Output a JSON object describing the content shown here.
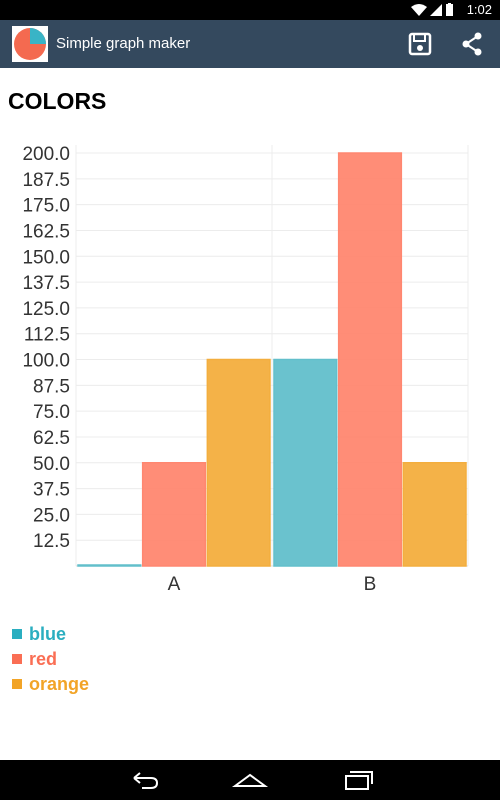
{
  "status_bar": {
    "time": "1:02",
    "icons": [
      "wifi-icon",
      "cell-signal-icon",
      "battery-icon"
    ]
  },
  "action_bar": {
    "title": "Simple graph maker",
    "background": "#34495e",
    "actions": [
      "save-icon",
      "share-icon"
    ]
  },
  "chart_data": {
    "type": "bar",
    "title": "COLORS",
    "categories": [
      "A",
      "B"
    ],
    "series": [
      {
        "name": "blue",
        "values": [
          0,
          100
        ],
        "color": "#62bfcb"
      },
      {
        "name": "red",
        "values": [
          50,
          200
        ],
        "color": "#ff8770"
      },
      {
        "name": "orange",
        "values": [
          100,
          50
        ],
        "color": "#f3ae3e"
      }
    ],
    "y_ticks": [
      "12.5",
      "25.0",
      "37.5",
      "50.0",
      "62.5",
      "75.0",
      "87.5",
      "100.0",
      "112.5",
      "125.0",
      "137.5",
      "150.0",
      "162.5",
      "175.0",
      "187.5",
      "200.0"
    ],
    "ylim": [
      0,
      200
    ],
    "xlabel": "",
    "ylabel": "",
    "grid": true,
    "legend_position": "bottom-left"
  },
  "legend": {
    "items": [
      {
        "label": "blue",
        "color": "#2aaec0"
      },
      {
        "label": "red",
        "color": "#fa6e54"
      },
      {
        "label": "orange",
        "color": "#f2a427"
      }
    ]
  },
  "nav_bar": {
    "buttons": [
      "back-icon",
      "home-icon",
      "recents-icon"
    ]
  }
}
